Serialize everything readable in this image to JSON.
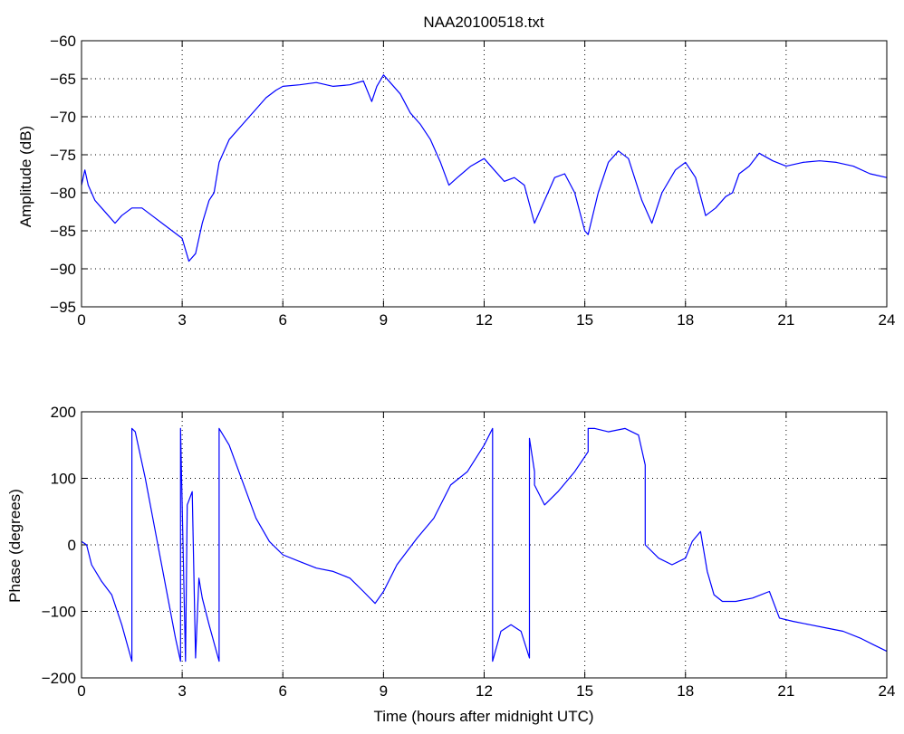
{
  "chart_data": [
    {
      "type": "line",
      "title": "NAA20100518.txt",
      "xlabel": "",
      "ylabel": "Amplitude (dB)",
      "xlim": [
        0,
        24
      ],
      "ylim": [
        -95,
        -60
      ],
      "xticks": [
        "0",
        "3",
        "6",
        "9",
        "12",
        "15",
        "18",
        "21",
        "24"
      ],
      "yticks": [
        "-60",
        "-65",
        "-70",
        "-75",
        "-80",
        "-85",
        "-90",
        "-95"
      ],
      "grid": true,
      "color": "#0000ff",
      "series": [
        {
          "x": [
            0,
            0.1,
            0.2,
            0.4,
            0.6,
            0.8,
            1.0,
            1.2,
            1.5,
            1.8,
            2.1,
            2.4,
            2.7,
            3.0,
            3.2,
            3.4,
            3.6,
            3.8,
            3.95,
            4.1,
            4.4,
            4.8,
            5.2,
            5.5,
            5.8,
            6.0,
            6.5,
            7.0,
            7.5,
            8.0,
            8.4,
            8.65,
            8.8,
            9.0,
            9.2,
            9.5,
            9.8,
            10.1,
            10.4,
            10.7,
            10.95,
            11.2,
            11.6,
            12.0,
            12.3,
            12.6,
            12.9,
            13.2,
            13.5,
            13.8,
            14.1,
            14.4,
            14.7,
            15.0,
            15.1,
            15.4,
            15.7,
            16.0,
            16.3,
            16.7,
            17.0,
            17.3,
            17.7,
            18.0,
            18.3,
            18.6,
            18.9,
            19.2,
            19.4,
            19.6,
            19.9,
            20.2,
            20.6,
            21.0,
            21.5,
            22.0,
            22.5,
            23.0,
            23.5,
            24.0
          ],
          "y": [
            -79,
            -77,
            -79,
            -81,
            -82,
            -83,
            -84,
            -83,
            -82,
            -82,
            -83,
            -84,
            -85,
            -86,
            -89,
            -88,
            -84,
            -81,
            -80,
            -76,
            -73,
            -71,
            -69,
            -67.5,
            -66.5,
            -66,
            -65.8,
            -65.5,
            -66,
            -65.8,
            -65.3,
            -68,
            -66,
            -64.5,
            -65.5,
            -67,
            -69.5,
            -71,
            -73,
            -76,
            -79,
            -78,
            -76.5,
            -75.5,
            -77,
            -78.5,
            -78,
            -79,
            -84,
            -81,
            -78,
            -77.5,
            -80,
            -85,
            -85.5,
            -80,
            -76,
            -74.5,
            -75.5,
            -81,
            -84,
            -80,
            -77,
            -76,
            -78,
            -83,
            -82,
            -80.5,
            -80,
            -77.5,
            -76.5,
            -74.8,
            -75.8,
            -76.5,
            -76,
            -75.8,
            -76,
            -76.5,
            -77.5,
            -78
          ]
        }
      ]
    },
    {
      "type": "line",
      "title": "",
      "xlabel": "Time (hours after midnight UTC)",
      "ylabel": "Phase (degrees)",
      "xlim": [
        0,
        24
      ],
      "ylim": [
        -200,
        200
      ],
      "xticks": [
        "0",
        "3",
        "6",
        "9",
        "12",
        "15",
        "18",
        "21",
        "24"
      ],
      "yticks": [
        "200",
        "100",
        "0",
        "-100",
        "-200"
      ],
      "grid": true,
      "color": "#0000ff",
      "series": [
        {
          "x": [
            0,
            0.15,
            0.3,
            0.6,
            0.9,
            1.2,
            1.5,
            1.5,
            1.6,
            1.9,
            2.2,
            2.5,
            2.8,
            2.95,
            2.95,
            3.1,
            3.15,
            3.3,
            3.4,
            3.5,
            3.6,
            3.8,
            4.1,
            4.1,
            4.4,
            4.8,
            5.2,
            5.6,
            6.0,
            6.5,
            7.0,
            7.5,
            8.0,
            8.4,
            8.75,
            9.0,
            9.4,
            10.0,
            10.5,
            11.0,
            11.5,
            12.0,
            12.25,
            12.25,
            12.5,
            12.8,
            13.1,
            13.35,
            13.35,
            13.5,
            13.5,
            13.8,
            14.2,
            14.7,
            15.1,
            15.1,
            15.3,
            15.7,
            16.2,
            16.6,
            16.8,
            16.8,
            17.2,
            17.6,
            18.0,
            18.2,
            18.45,
            18.65,
            18.85,
            19.1,
            19.5,
            20.0,
            20.5,
            20.8,
            21.2,
            21.7,
            22.2,
            22.7,
            23.2,
            23.6,
            24.0
          ],
          "y": [
            5,
            0,
            -30,
            -55,
            -75,
            -120,
            -175,
            175,
            170,
            100,
            20,
            -60,
            -140,
            -175,
            175,
            -175,
            60,
            80,
            -170,
            -50,
            -80,
            -120,
            -175,
            175,
            150,
            95,
            40,
            5,
            -15,
            -25,
            -35,
            -40,
            -50,
            -70,
            -88,
            -70,
            -30,
            10,
            40,
            90,
            110,
            150,
            175,
            -175,
            -130,
            -120,
            -130,
            -170,
            160,
            110,
            90,
            60,
            80,
            110,
            140,
            175,
            175,
            170,
            175,
            165,
            120,
            0,
            -20,
            -30,
            -20,
            5,
            20,
            -40,
            -75,
            -85,
            -85,
            -80,
            -70,
            -110,
            -115,
            -120,
            -125,
            -130,
            -140,
            -150,
            -160
          ]
        }
      ]
    }
  ]
}
